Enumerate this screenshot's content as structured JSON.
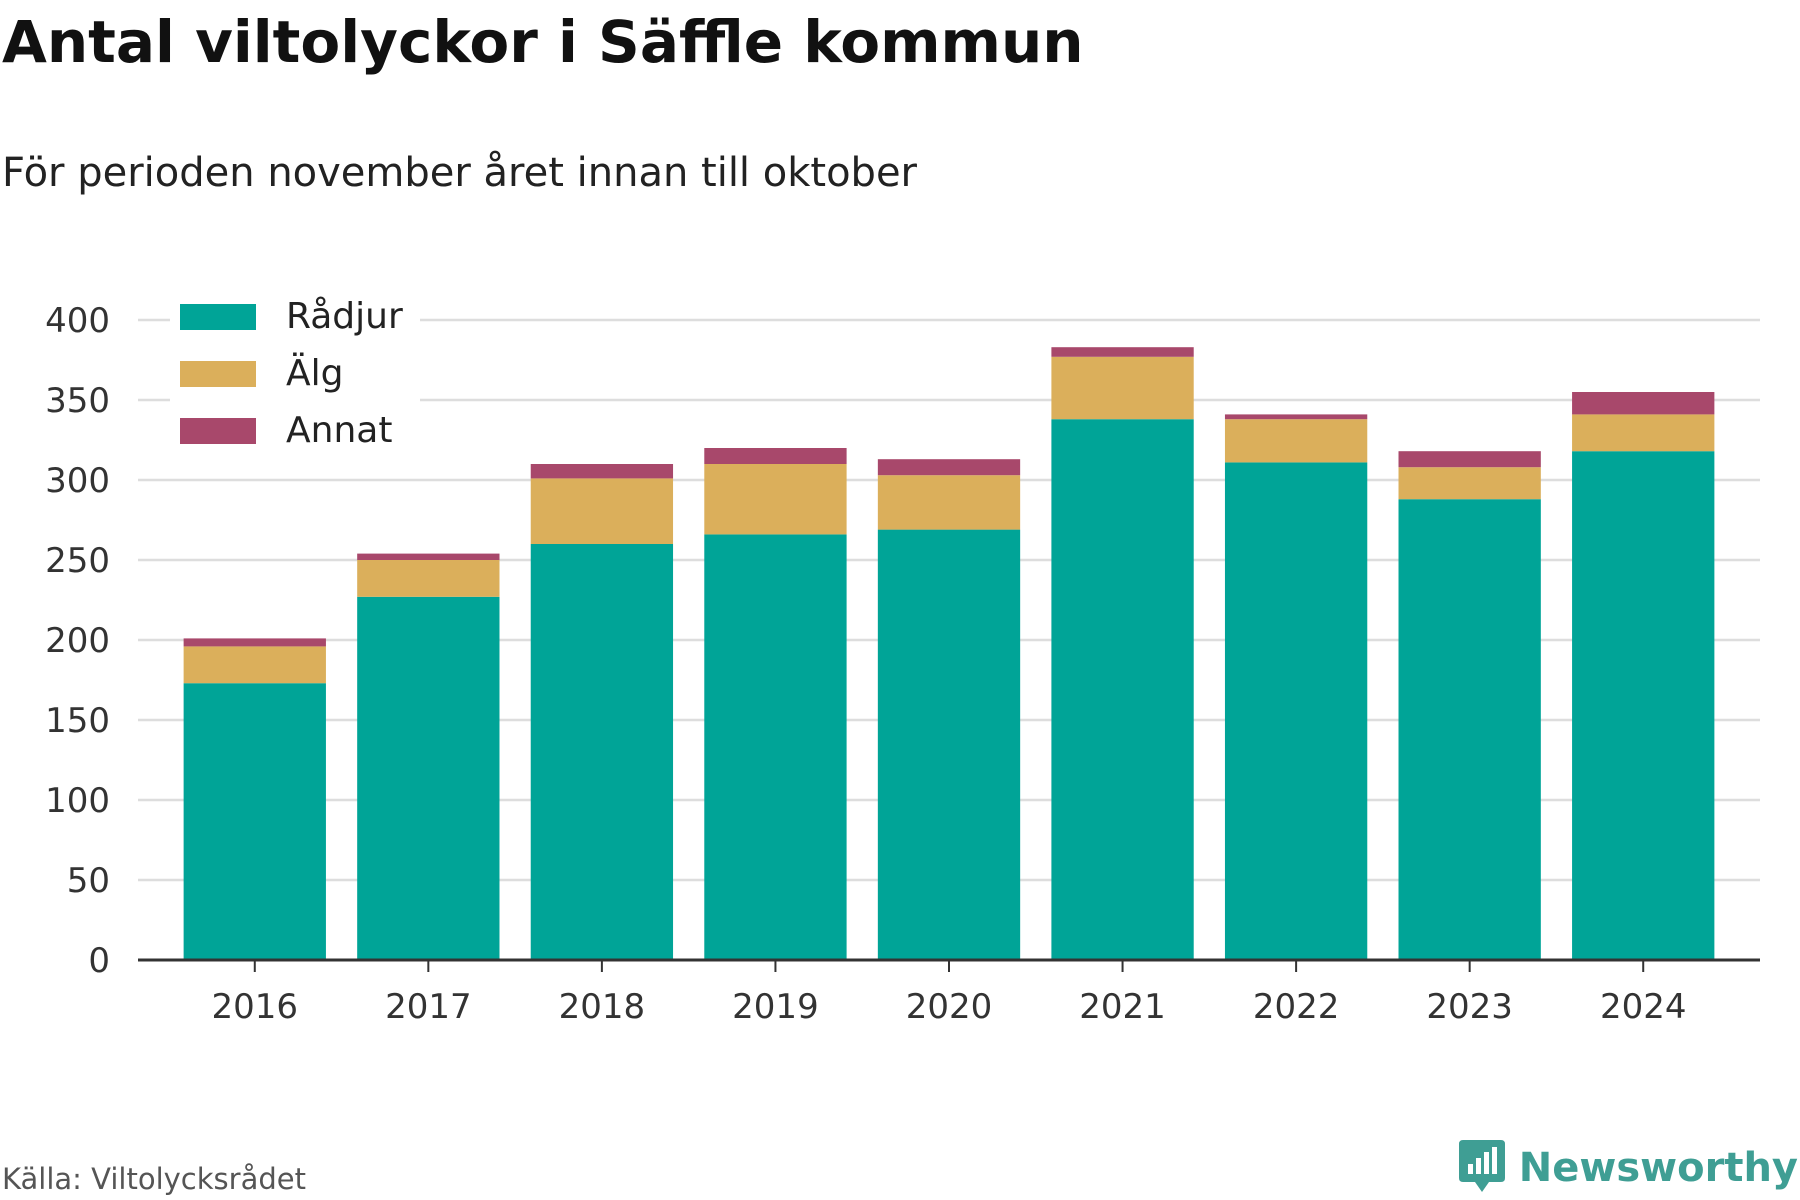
{
  "title": "Antal viltolyckor i Säffle kommun",
  "subtitle": "För perioden november året innan till oktober",
  "source": "Källa: Viltolycksrådet",
  "brand": "Newsworthy",
  "colors": {
    "radjur": "#00a497",
    "alg": "#dbaf5b",
    "annat": "#a8486b",
    "grid": "#dddddd",
    "axis": "#333333",
    "brand": "#3f9e94"
  },
  "chart_data": {
    "type": "bar",
    "stacked": true,
    "categories": [
      "2016",
      "2017",
      "2018",
      "2019",
      "2020",
      "2021",
      "2022",
      "2023",
      "2024"
    ],
    "series": [
      {
        "name": "Rådjur",
        "values": [
          173,
          227,
          260,
          266,
          269,
          338,
          311,
          288,
          318
        ]
      },
      {
        "name": "Älg",
        "values": [
          23,
          23,
          41,
          44,
          34,
          39,
          27,
          20,
          23
        ]
      },
      {
        "name": "Annat",
        "values": [
          5,
          4,
          9,
          10,
          10,
          6,
          3,
          10,
          14
        ]
      }
    ],
    "ylim": [
      0,
      400
    ],
    "yticks": [
      0,
      50,
      100,
      150,
      200,
      250,
      300,
      350,
      400
    ],
    "grid": true,
    "legend": "top-left"
  }
}
